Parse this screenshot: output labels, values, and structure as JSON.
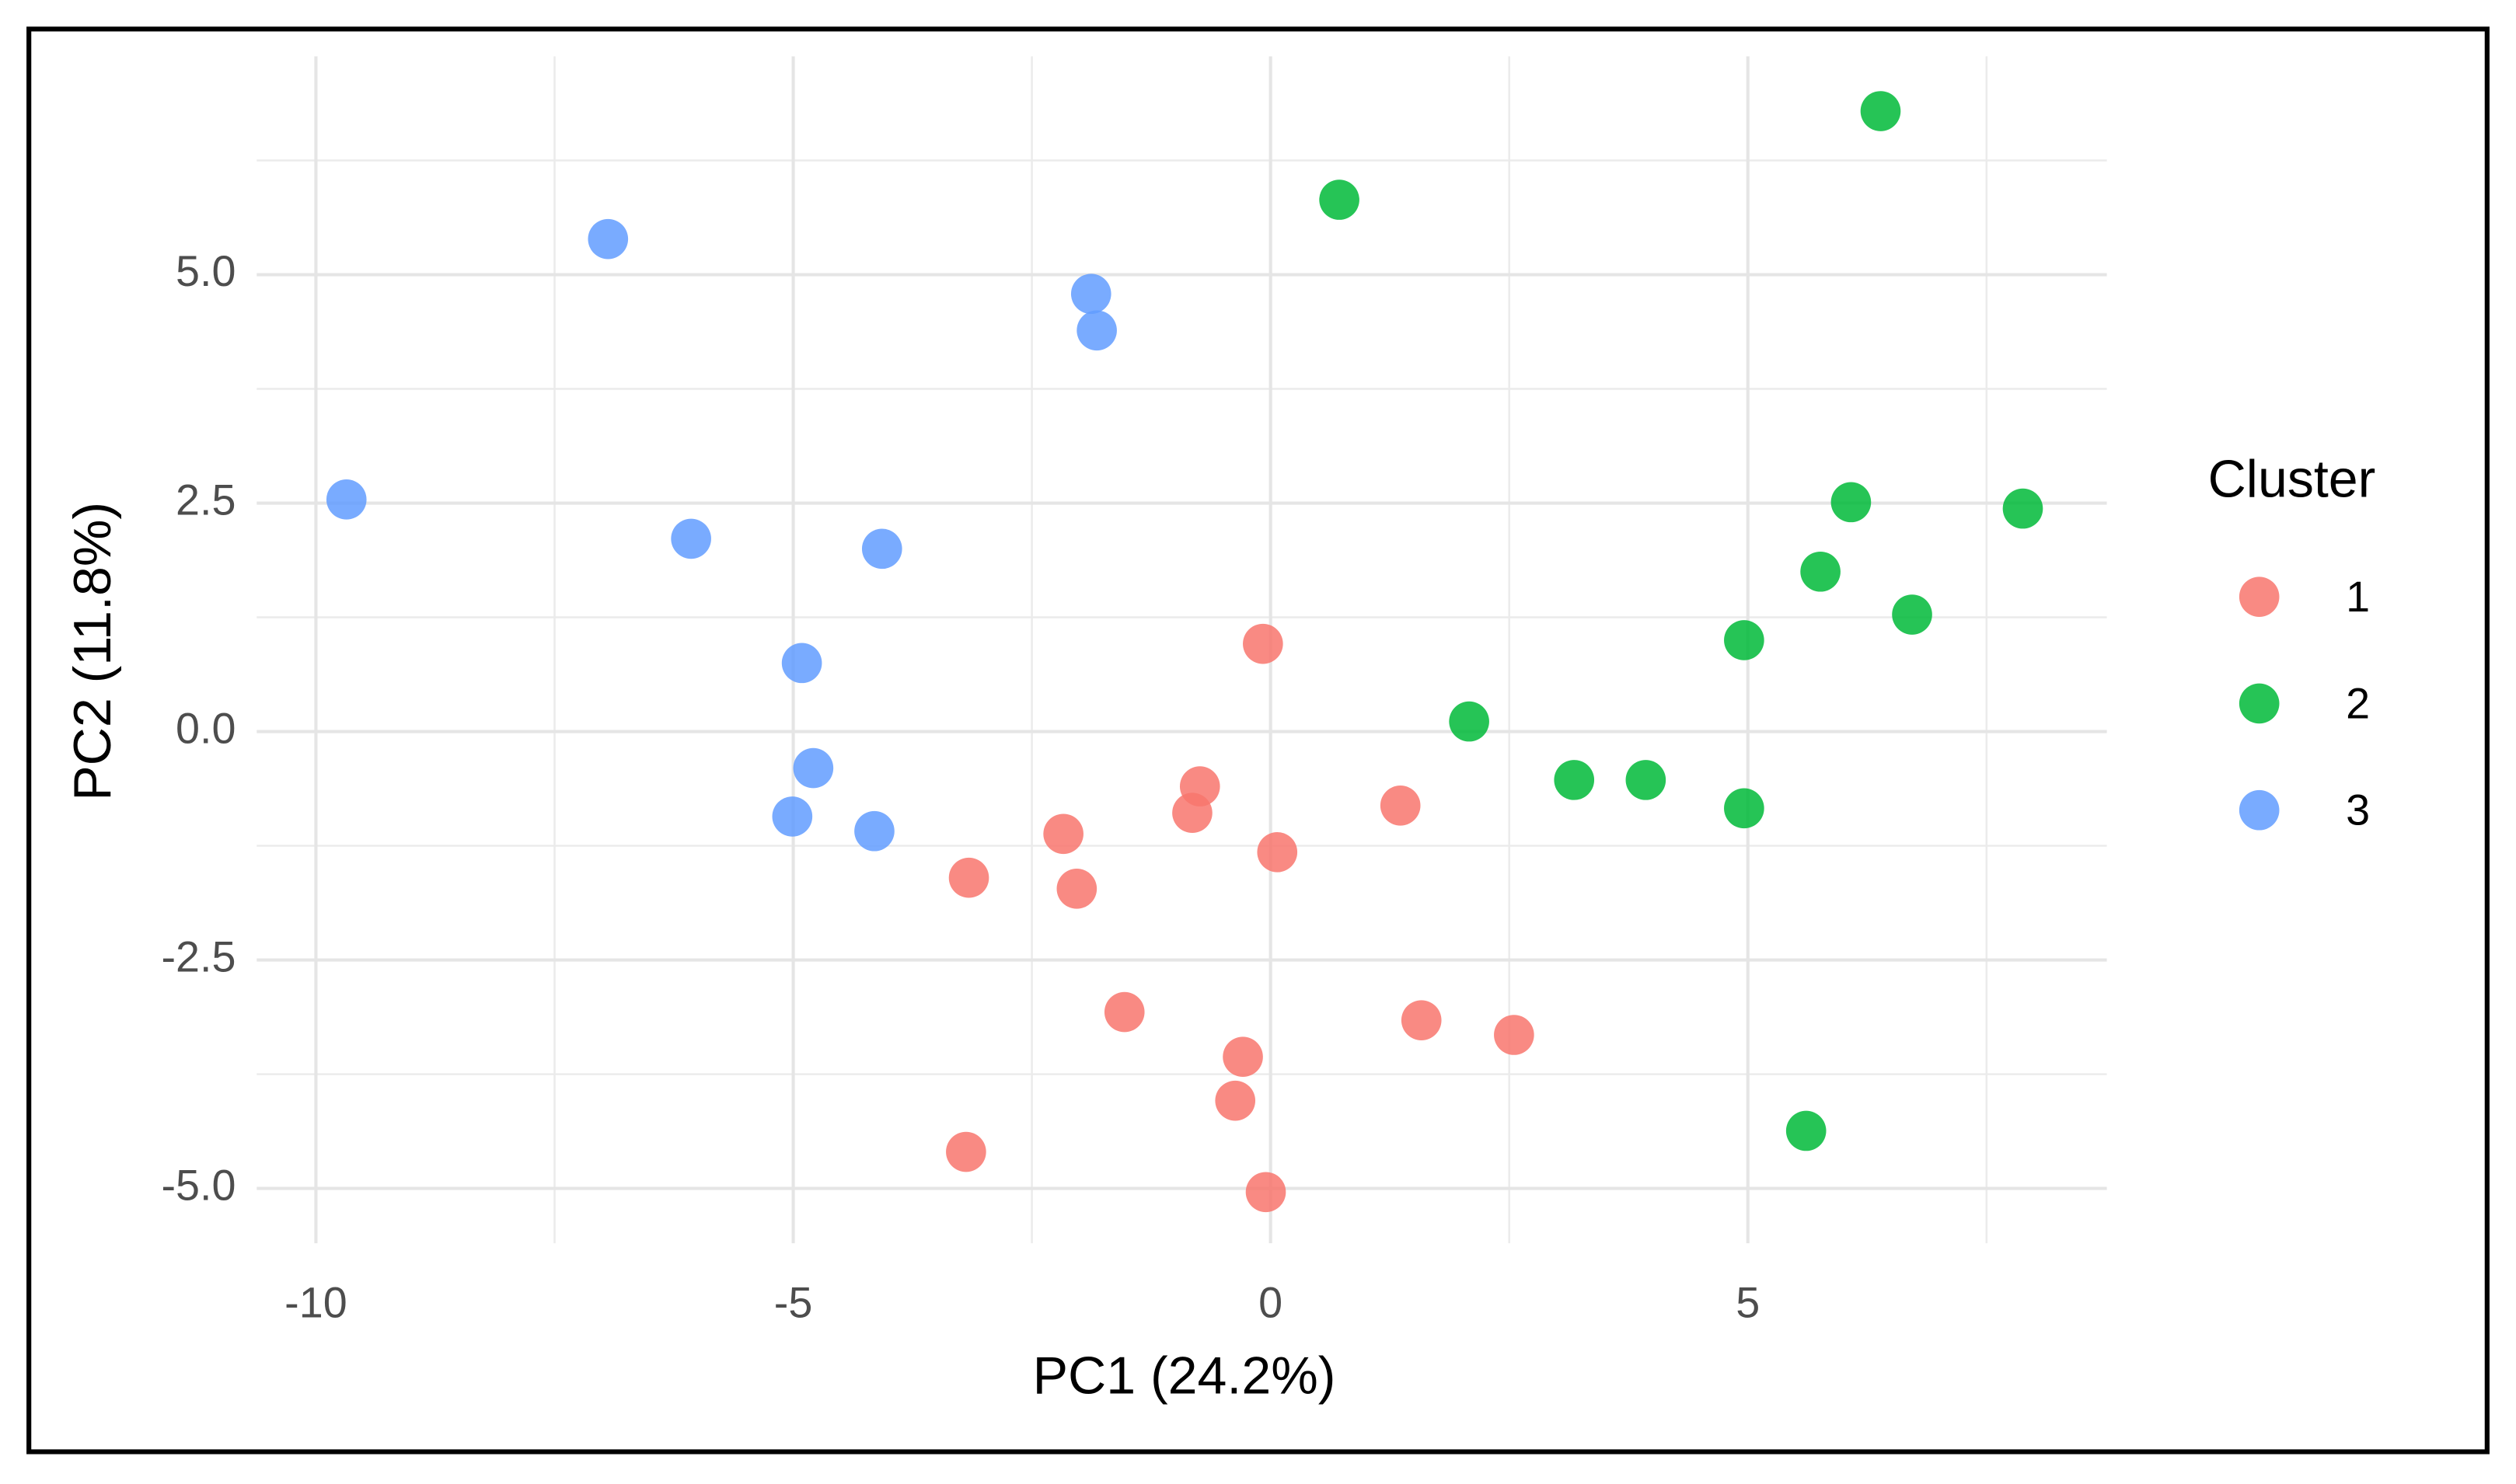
{
  "chart_data": {
    "type": "scatter",
    "x_label": "PC1 (24.2%)",
    "y_label": "PC2 (11.8%)",
    "legend_title": "Cluster",
    "legend_position": "right",
    "grid": true,
    "xlim": [
      -10.62,
      8.76
    ],
    "ylim": [
      -5.6,
      7.39
    ],
    "xticks": [
      -10,
      -5,
      0,
      5
    ],
    "yticks": [
      {
        "value": -5,
        "label": "-5.0"
      },
      -2.5,
      {
        "value": 0,
        "label": "0.0"
      },
      2.5,
      {
        "value": 5,
        "label": "5.0"
      }
    ],
    "xminor_ticks": [
      -7.5,
      -2.5,
      2.5,
      7.5
    ],
    "yminor_ticks": [
      -3.75,
      -1.25,
      1.25,
      3.75,
      6.25
    ],
    "series": [
      {
        "name": "1",
        "color": "#F8766D",
        "x": [
          -0.08,
          -0.74,
          -0.82,
          1.36,
          0.07,
          -2.17,
          -3.16,
          -2.03,
          -1.53,
          1.58,
          2.55,
          -0.29,
          -0.37,
          -3.19,
          -0.05
        ],
        "y": [
          0.96,
          -0.6,
          -0.89,
          -0.81,
          -1.32,
          -1.12,
          -1.6,
          -1.72,
          -3.07,
          -3.16,
          -3.32,
          -3.56,
          -4.04,
          -4.6,
          -5.04
        ]
      },
      {
        "name": "2",
        "color": "#00BA38",
        "x": [
          6.39,
          0.72,
          6.08,
          7.88,
          5.76,
          6.72,
          4.96,
          2.08,
          3.18,
          3.93,
          4.96,
          5.61
        ],
        "y": [
          6.79,
          5.82,
          2.51,
          2.44,
          1.75,
          1.28,
          1.0,
          0.11,
          -0.53,
          -0.53,
          -0.84,
          -4.37
        ]
      },
      {
        "name": "3",
        "color": "#619CFF",
        "x": [
          -6.94,
          -1.88,
          -1.82,
          -9.68,
          -6.07,
          -4.07,
          -4.91,
          -4.79,
          -5.01,
          -4.15
        ],
        "y": [
          5.39,
          4.79,
          4.39,
          2.54,
          2.11,
          2.0,
          0.75,
          -0.4,
          -0.93,
          -1.09
        ]
      }
    ]
  }
}
